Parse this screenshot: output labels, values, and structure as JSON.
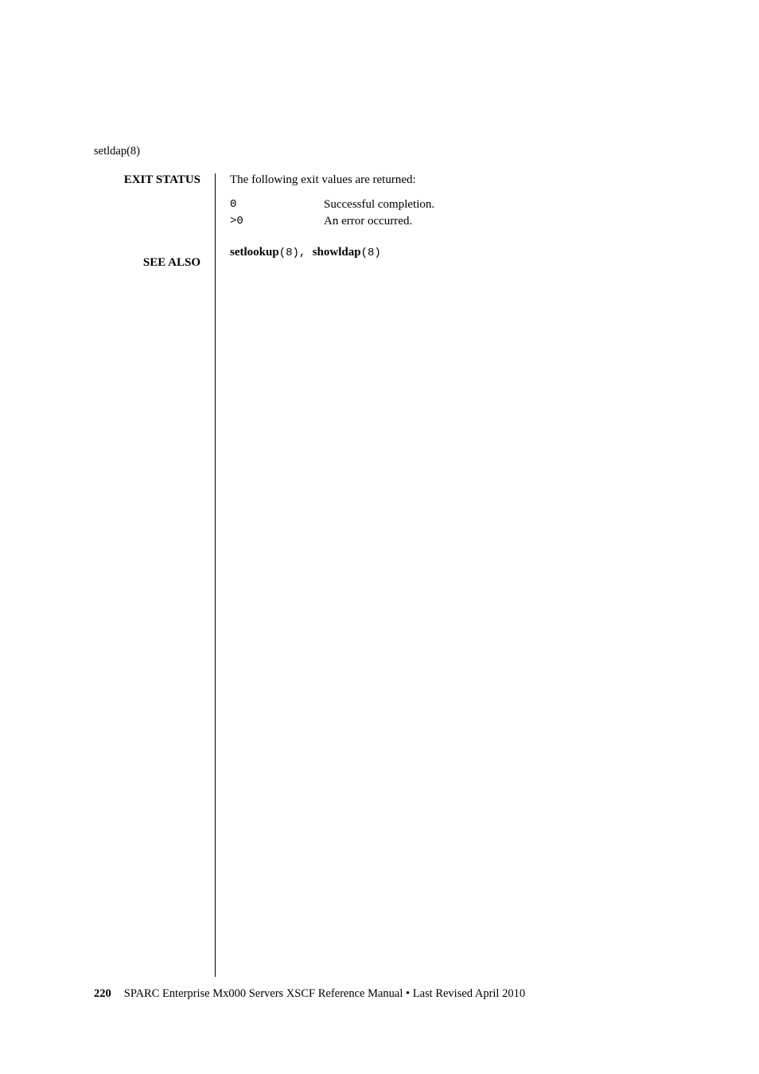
{
  "header": {
    "command": "setldap(8)"
  },
  "sections": {
    "exit_status": {
      "label": "EXIT STATUS",
      "intro": "The following exit values are returned:",
      "rows": [
        {
          "code": "0",
          "desc": "Successful completion."
        },
        {
          "code": ">0",
          "desc": "An error occurred."
        }
      ]
    },
    "see_also": {
      "label": "SEE ALSO",
      "items": [
        {
          "cmd": "setlookup",
          "section": "(8)"
        },
        {
          "cmd": "showldap",
          "section": "(8)"
        }
      ],
      "separator": ", "
    }
  },
  "footer": {
    "page_number": "220",
    "text": "SPARC Enterprise Mx000 Servers XSCF Reference Manual • Last Revised April 2010"
  }
}
